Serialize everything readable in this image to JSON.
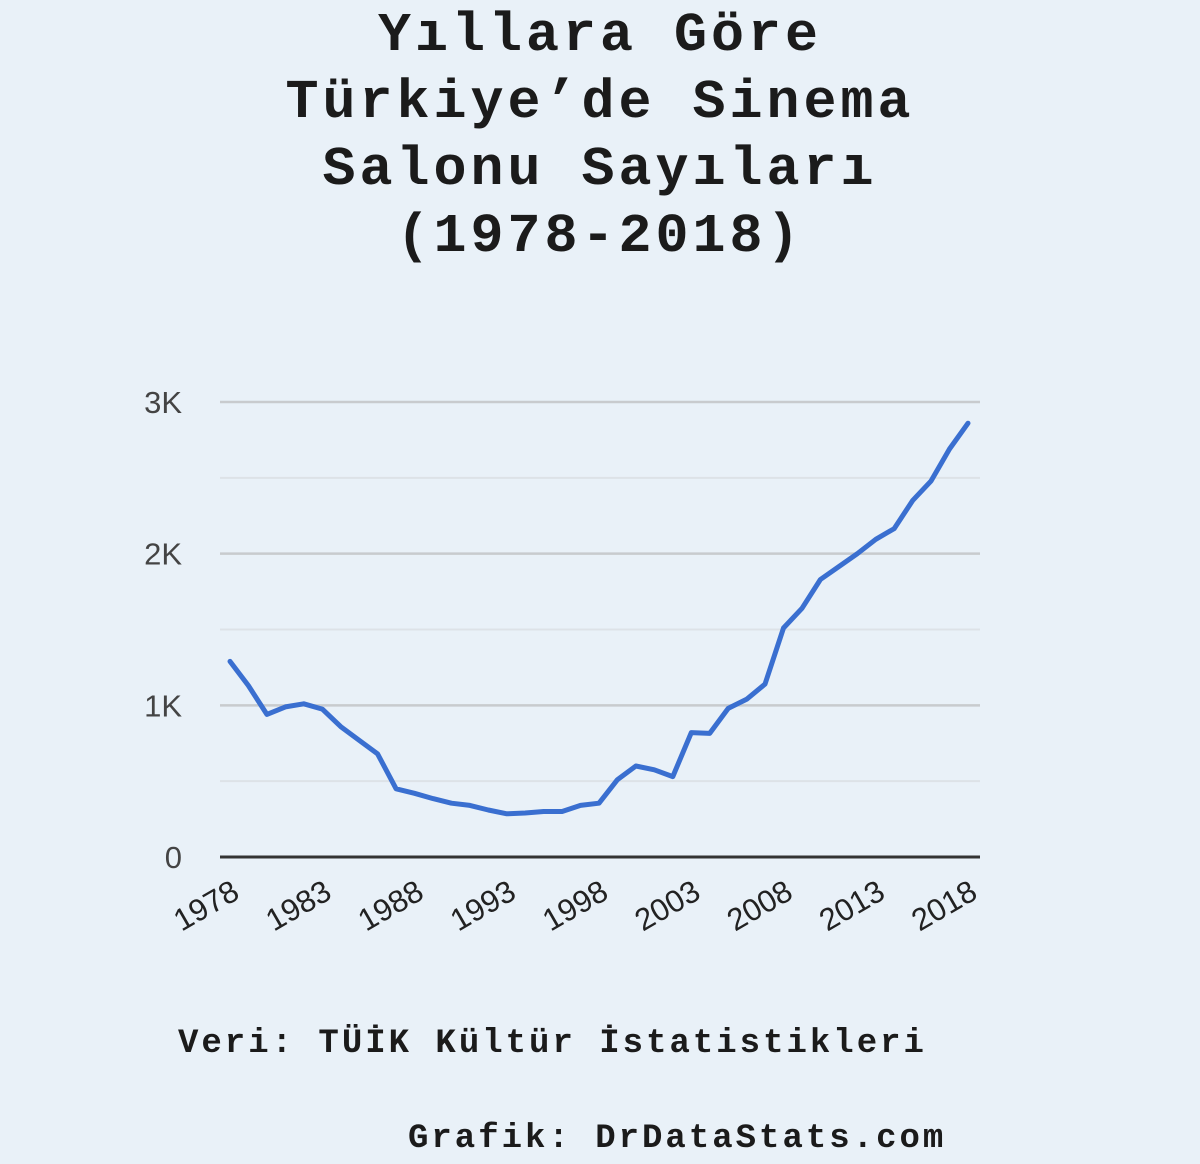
{
  "title_lines": [
    "Yıllara Göre",
    "Türkiye’de Sinema",
    "Salonu Sayıları",
    "(1978-2018)"
  ],
  "source": "Veri: TÜİK Kültür İstatistikleri",
  "credit": "Grafik: DrDataStats.com",
  "colors": {
    "background": "#e9f1f8",
    "line": "#3a6fd0",
    "grid_major": "#c8cbce",
    "grid_minor": "#dde2e7",
    "baseline": "#333333"
  },
  "chart_data": {
    "type": "line",
    "title": "Yıllara Göre Türkiye’de Sinema Salonu Sayıları (1978-2018)",
    "xlabel": "",
    "ylabel": "",
    "x": [
      1978,
      1979,
      1980,
      1981,
      1982,
      1983,
      1984,
      1985,
      1986,
      1987,
      1988,
      1989,
      1990,
      1991,
      1992,
      1993,
      1994,
      1995,
      1996,
      1997,
      1998,
      1999,
      2000,
      2001,
      2002,
      2003,
      2004,
      2005,
      2006,
      2007,
      2008,
      2009,
      2010,
      2011,
      2012,
      2013,
      2014,
      2015,
      2016,
      2017,
      2018
    ],
    "series": [
      {
        "name": "",
        "values": [
          1290,
          1130,
          940,
          990,
          1010,
          975,
          860,
          770,
          680,
          450,
          420,
          385,
          355,
          340,
          310,
          285,
          290,
          300,
          300,
          340,
          355,
          510,
          600,
          575,
          530,
          820,
          815,
          980,
          1040,
          1140,
          1510,
          1640,
          1830,
          1915,
          2000,
          2095,
          2165,
          2350,
          2480,
          2690,
          2860
        ]
      }
    ],
    "xticks": [
      "1978",
      "1983",
      "1988",
      "1993",
      "1998",
      "2003",
      "2008",
      "2013",
      "2018"
    ],
    "yticks": [
      "0",
      "1K",
      "2K",
      "3K"
    ],
    "ytick_values": [
      0,
      1000,
      2000,
      3000
    ],
    "ylim": [
      0,
      3000
    ],
    "xlim": [
      1978,
      2018
    ],
    "grid": true
  }
}
